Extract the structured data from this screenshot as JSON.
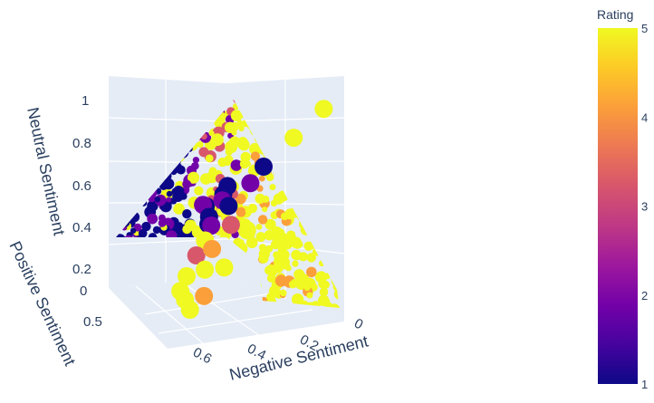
{
  "chart_data": {
    "type": "scatter3d",
    "title": "",
    "axes": {
      "x": {
        "label": "Negative Sentiment",
        "ticks": [
          "0",
          "0.2",
          "0.4",
          "0.6"
        ],
        "tick_values": [
          0,
          0.2,
          0.4,
          0.6
        ],
        "range": [
          0,
          0.7
        ]
      },
      "y": {
        "label": "Positive Sentiment",
        "ticks": [
          "0",
          "0.5"
        ],
        "tick_values": [
          0,
          0.5
        ],
        "range": [
          0,
          0.75
        ]
      },
      "z": {
        "label": "Neutral Sentiment",
        "ticks": [
          "0.2",
          "0.4",
          "0.6",
          "0.8",
          "1"
        ],
        "tick_values": [
          0.2,
          0.4,
          0.6,
          0.8,
          1
        ],
        "range": [
          0.15,
          1
        ]
      }
    },
    "color_axis": {
      "title": "Rating",
      "range": [
        1,
        5
      ],
      "ticks": [
        "1",
        "2",
        "3",
        "4",
        "5"
      ],
      "colorscale": "plasma",
      "colors": [
        "#0d0887",
        "#46039f",
        "#7201a8",
        "#9c179e",
        "#bd3786",
        "#d8576b",
        "#ed7953",
        "#fb9f3a",
        "#fdca26",
        "#f0f921"
      ]
    },
    "constraint": "negative + positive + neutral ≈ 1",
    "highlighted_points": [
      {
        "negative": 0.03,
        "positive": 0.48,
        "neutral": 0.47,
        "rating": 1
      },
      {
        "negative": 0.07,
        "positive": 0.55,
        "neutral": 0.37,
        "rating": 1
      },
      {
        "negative": 0.05,
        "positive": 0.58,
        "neutral": 0.36,
        "rating": 2
      },
      {
        "negative": 0.09,
        "positive": 0.45,
        "neutral": 0.46,
        "rating": 1
      },
      {
        "negative": 0.12,
        "positive": 0.43,
        "neutral": 0.45,
        "rating": 2
      },
      {
        "negative": 0.16,
        "positive": 0.46,
        "neutral": 0.38,
        "rating": 1
      },
      {
        "negative": 0.2,
        "positive": 0.43,
        "neutral": 0.37,
        "rating": 1
      },
      {
        "negative": 0.22,
        "positive": 0.4,
        "neutral": 0.38,
        "rating": 2
      },
      {
        "negative": 0.28,
        "positive": 0.38,
        "neutral": 0.34,
        "rating": 5
      },
      {
        "negative": 0.33,
        "positive": 0.38,
        "neutral": 0.29,
        "rating": 3
      },
      {
        "negative": 0.41,
        "positive": 0.36,
        "neutral": 0.23,
        "rating": 5
      },
      {
        "negative": 0.47,
        "positive": 0.34,
        "neutral": 0.19,
        "rating": 5
      },
      {
        "negative": 0.54,
        "positive": 0.26,
        "neutral": 0.2,
        "rating": 5
      },
      {
        "negative": 0.62,
        "positive": 0.17,
        "neutral": 0.21,
        "rating": 5
      },
      {
        "negative": 0.6,
        "positive": 0.12,
        "neutral": 0.28,
        "rating": 4
      },
      {
        "negative": 0.52,
        "positive": 0.09,
        "neutral": 0.39,
        "rating": 5
      },
      {
        "negative": 0.4,
        "positive": 0.08,
        "neutral": 0.52,
        "rating": 5
      },
      {
        "negative": 0.3,
        "positive": 0.24,
        "neutral": 0.46,
        "rating": 3
      },
      {
        "negative": 0.36,
        "positive": 0.28,
        "neutral": 0.36,
        "rating": 4
      },
      {
        "negative": 0.45,
        "positive": 0.24,
        "neutral": 0.31,
        "rating": 5
      },
      {
        "negative": 0.18,
        "positive": 0.35,
        "neutral": 0.47,
        "rating": 1
      },
      {
        "negative": 0.14,
        "positive": 0.28,
        "neutral": 0.58,
        "rating": 2
      },
      {
        "negative": 0.1,
        "positive": 0.25,
        "neutral": 0.65,
        "rating": 1
      },
      {
        "negative": 0.06,
        "positive": 0.14,
        "neutral": 0.8,
        "rating": 5
      },
      {
        "negative": 0.02,
        "positive": 0.03,
        "neutral": 0.95,
        "rating": 5
      }
    ]
  }
}
